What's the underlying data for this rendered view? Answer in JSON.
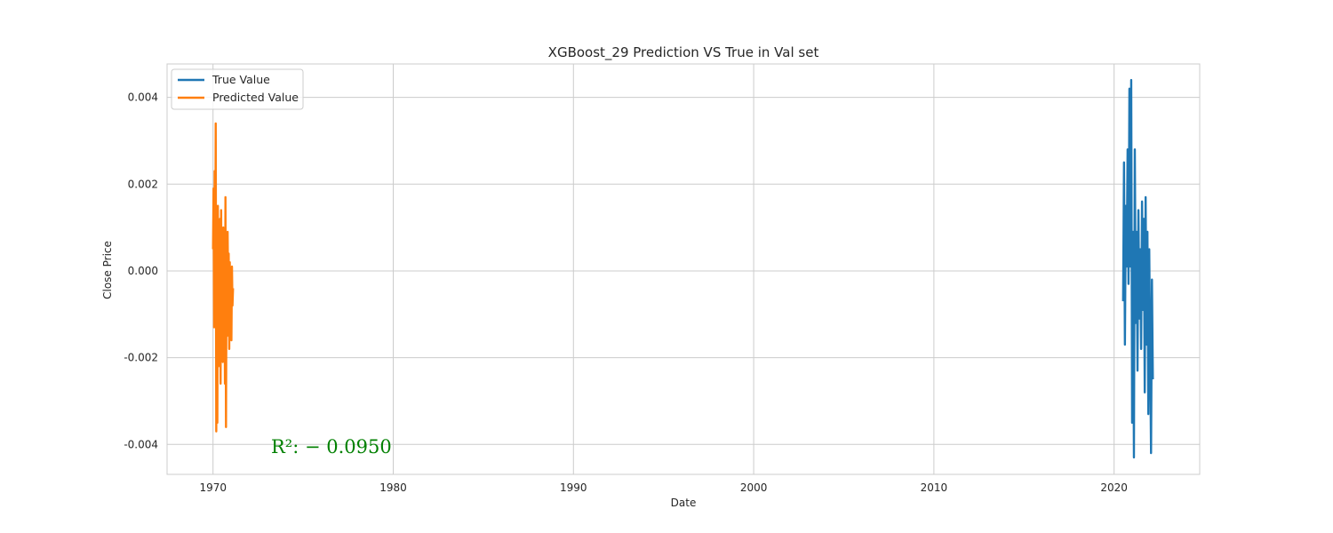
{
  "chart_data": {
    "type": "line",
    "title": "XGBoost_29 Prediction VS True in Val set",
    "xlabel": "Date",
    "ylabel": "Close Price",
    "x_ticks": [
      "1970",
      "1980",
      "1990",
      "2000",
      "2010",
      "2020"
    ],
    "y_ticks": [
      "-0.004",
      "-0.002",
      "0.000",
      "0.002",
      "0.004"
    ],
    "xlim": [
      1967.45,
      2024.75
    ],
    "ylim": [
      -0.00469,
      0.00477
    ],
    "grid": true,
    "legend_position": "top-left",
    "annotation": "R²: − 0.0950",
    "annotation_color": "#008000",
    "series": [
      {
        "name": "True Value",
        "color": "#1f77b4",
        "x": [
          2020.5,
          2020.55,
          2020.6,
          2020.65,
          2020.7,
          2020.75,
          2020.8,
          2020.85,
          2020.9,
          2020.95,
          2021.0,
          2021.05,
          2021.1,
          2021.15,
          2021.2,
          2021.25,
          2021.3,
          2021.35,
          2021.4,
          2021.45,
          2021.5,
          2021.55,
          2021.6,
          2021.65,
          2021.7,
          2021.75,
          2021.8,
          2021.85,
          2021.9,
          2021.95,
          2022.0,
          2022.05,
          2022.1,
          2022.15
        ],
        "y": [
          -0.0007,
          0.0025,
          -0.0017,
          0.0015,
          0.0001,
          0.0028,
          -0.0003,
          0.0042,
          0.0001,
          0.0044,
          -0.0035,
          0.0009,
          -0.0043,
          0.0028,
          -0.0012,
          0.0009,
          -0.0023,
          0.0014,
          -0.0011,
          0.0005,
          -0.0018,
          0.0016,
          -0.0009,
          0.0012,
          -0.0028,
          0.0017,
          -0.0017,
          0.0009,
          -0.0033,
          0.0005,
          -0.0018,
          -0.0042,
          -0.0002,
          -0.0025
        ]
      },
      {
        "name": "Predicted Value",
        "color": "#ff7f0e",
        "x": [
          1970.0,
          1970.03,
          1970.06,
          1970.09,
          1970.12,
          1970.15,
          1970.18,
          1970.21,
          1970.24,
          1970.27,
          1970.3,
          1970.33,
          1970.36,
          1970.39,
          1970.42,
          1970.45,
          1970.48,
          1970.51,
          1970.54,
          1970.57,
          1970.6,
          1970.63,
          1970.66,
          1970.69,
          1970.72,
          1970.75,
          1970.78,
          1970.81,
          1970.84,
          1970.87,
          1970.9,
          1970.93,
          1970.96,
          1970.99,
          1971.02,
          1971.05,
          1971.08,
          1971.11
        ],
        "y": [
          0.0005,
          0.0019,
          -0.0013,
          0.0023,
          -0.0009,
          0.0034,
          -0.0037,
          0.001,
          -0.0035,
          0.0015,
          -0.0022,
          0.0008,
          -0.0017,
          0.0012,
          -0.0026,
          0.0014,
          -0.0008,
          0.0006,
          -0.0021,
          0.001,
          -0.0014,
          0.0004,
          -0.0026,
          0.0017,
          -0.0036,
          0.0002,
          -0.0015,
          0.0009,
          -0.0005,
          0.0004,
          -0.0018,
          0.0002,
          -0.0012,
          -0.0003,
          -0.0016,
          0.0001,
          -0.0008,
          -0.0004
        ]
      }
    ]
  }
}
